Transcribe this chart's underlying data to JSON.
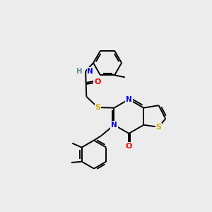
{
  "background_color": "#ececec",
  "atom_colors": {
    "C": "#000000",
    "N": "#0000ee",
    "O": "#ff0000",
    "S": "#ccaa00",
    "H": "#5a9090"
  },
  "bond_color": "#000000",
  "bond_width": 1.4,
  "figsize": [
    3.0,
    3.0
  ],
  "dpi": 100
}
